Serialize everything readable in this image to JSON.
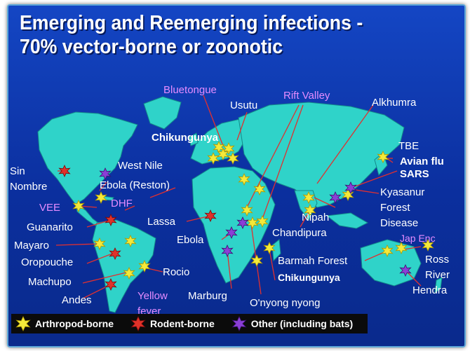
{
  "title": {
    "line1": "Emerging and Reemerging infections -",
    "line2": "70% vector-borne or zoonotic"
  },
  "colors": {
    "background": "#0b2f9e",
    "land": "#2fd3c9",
    "arthropod": "#f4e93a",
    "rodent": "#e0322a",
    "other": "#8b3fd6",
    "label_pink": "#e58cff"
  },
  "labels": [
    {
      "id": "bluetongue",
      "text": "Bluetongue"
    },
    {
      "id": "rift-valley",
      "text": "Rift Valley"
    },
    {
      "id": "usutu",
      "text": "Usutu"
    },
    {
      "id": "alkhumra",
      "text": "Alkhumra"
    },
    {
      "id": "chikungunya-europe",
      "text": "Chikungunya"
    },
    {
      "id": "tbe",
      "text": "TBE"
    },
    {
      "id": "avian-flu",
      "text": "Avian flu"
    },
    {
      "id": "sars",
      "text": "SARS"
    },
    {
      "id": "west-nile",
      "text": "West Nile"
    },
    {
      "id": "sin-nombre-1",
      "text": "Sin"
    },
    {
      "id": "sin-nombre-2",
      "text": "Nombre"
    },
    {
      "id": "ebola-reston",
      "text": "Ebola (Reston)"
    },
    {
      "id": "kyasanur-1",
      "text": "Kyasanur"
    },
    {
      "id": "kyasanur-2",
      "text": "Forest"
    },
    {
      "id": "kyasanur-3",
      "text": "Disease"
    },
    {
      "id": "vee",
      "text": "VEE"
    },
    {
      "id": "dhf",
      "text": "DHF"
    },
    {
      "id": "guanarito",
      "text": "Guanarito"
    },
    {
      "id": "lassa",
      "text": "Lassa"
    },
    {
      "id": "nipah",
      "text": "Nipah"
    },
    {
      "id": "jap-enc",
      "text": "Jap Enc"
    },
    {
      "id": "mayaro",
      "text": "Mayaro"
    },
    {
      "id": "ebola",
      "text": "Ebola"
    },
    {
      "id": "chandipura",
      "text": "Chandipura"
    },
    {
      "id": "oropouche",
      "text": "Oropouche"
    },
    {
      "id": "barmah-forest",
      "text": "Barmah Forest"
    },
    {
      "id": "ross-river-1",
      "text": "Ross"
    },
    {
      "id": "ross-river-2",
      "text": "River"
    },
    {
      "id": "rocio",
      "text": "Rocio"
    },
    {
      "id": "machupo",
      "text": "Machupo"
    },
    {
      "id": "chikungunya-indian-ocean",
      "text": "Chikungunya"
    },
    {
      "id": "hendra",
      "text": "Hendra"
    },
    {
      "id": "yellow-fever-1",
      "text": "Yellow"
    },
    {
      "id": "yellow-fever-2",
      "text": "fever"
    },
    {
      "id": "andes",
      "text": "Andes"
    },
    {
      "id": "marburg",
      "text": "Marburg"
    },
    {
      "id": "onyong-nyong",
      "text": "O'nyong nyong"
    }
  ],
  "legend": {
    "arthropod": "Arthropod-borne",
    "rodent": "Rodent-borne",
    "other": "Other (including bats)"
  }
}
